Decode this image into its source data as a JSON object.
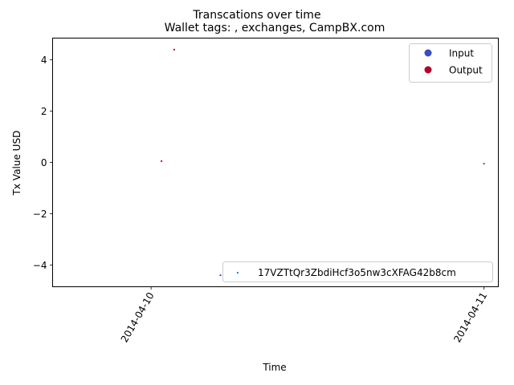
{
  "chart_data": {
    "type": "scatter",
    "title": "Transcations over time",
    "subtitle": "Wallet tags: , exchanges, CampBX.com",
    "xlabel": "Time",
    "ylabel": "Tx Value USD",
    "xlim": [
      "2014-04-09T16:54",
      "2014-04-11T01:02"
    ],
    "ylim": [
      -4.85,
      4.85
    ],
    "x_ticks": [
      "2014-04-10",
      "2014-04-11"
    ],
    "y_ticks": [
      -4,
      -2,
      0,
      2,
      4
    ],
    "grid": false,
    "series": [
      {
        "name": "Input",
        "color": "#3b4cc0",
        "points": [
          {
            "x": "2014-04-10T05:00",
            "y": -4.4
          },
          {
            "x": "2014-04-11T00:00",
            "y": -0.05
          }
        ]
      },
      {
        "name": "Output",
        "color": "#b40426",
        "points": [
          {
            "x": "2014-04-10T00:45",
            "y": 0.05
          },
          {
            "x": "2014-04-10T01:40",
            "y": 4.4
          }
        ]
      }
    ],
    "legend": {
      "position": "top-right",
      "entries": [
        {
          "label": "Input",
          "color": "#3b4cc0"
        },
        {
          "label": "Output",
          "color": "#b40426"
        }
      ]
    },
    "legend2": {
      "position": "lower-right",
      "label": "17VZTtQr3ZbdiHcf3o5nw3cXFAG42b8cm",
      "color": "#1f77b4"
    }
  }
}
